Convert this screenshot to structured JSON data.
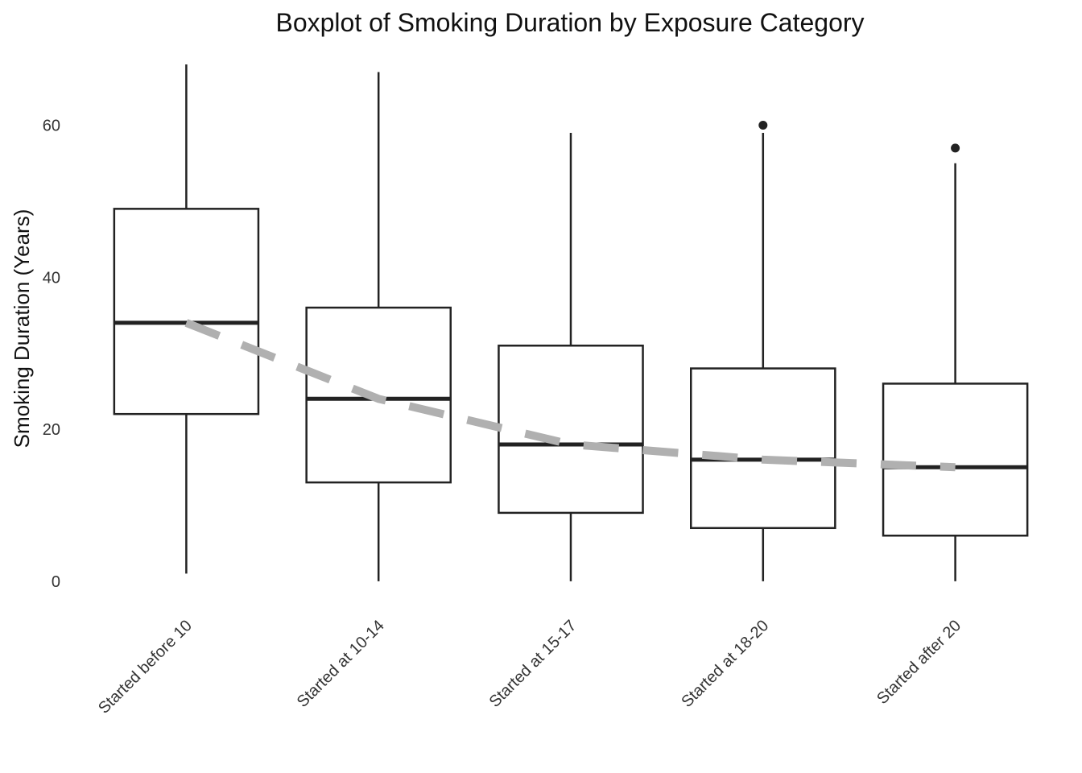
{
  "chart_data": {
    "type": "box",
    "title": "Boxplot of Smoking Duration by Exposure Category",
    "xlabel": "",
    "ylabel": "Smoking Duration (Years)",
    "ylim": [
      -1.5,
      68
    ],
    "yticks": [
      0,
      20,
      40,
      60
    ],
    "grid": false,
    "legend": "none",
    "categories": [
      "Started before 10",
      "Started at 10-14",
      "Started at 15-17",
      "Started at 18-20",
      "Started after 20"
    ],
    "boxes": [
      {
        "category": "Started before 10",
        "whisker_low": 1,
        "q1": 22,
        "median": 34,
        "q3": 49,
        "whisker_high": 68,
        "outliers": []
      },
      {
        "category": "Started at 10-14",
        "whisker_low": 0,
        "q1": 13,
        "median": 24,
        "q3": 36,
        "whisker_high": 67,
        "outliers": []
      },
      {
        "category": "Started at 15-17",
        "whisker_low": 0,
        "q1": 9,
        "median": 18,
        "q3": 31,
        "whisker_high": 59,
        "outliers": []
      },
      {
        "category": "Started at 18-20",
        "whisker_low": 0,
        "q1": 7,
        "median": 16,
        "q3": 28,
        "whisker_high": 59,
        "outliers": [
          60
        ]
      },
      {
        "category": "Started after 20",
        "whisker_low": 0,
        "q1": 6,
        "median": 15,
        "q3": 26,
        "whisker_high": 55,
        "outliers": [
          57
        ]
      }
    ],
    "trend_line": {
      "style": "dashed",
      "values": [
        34,
        24,
        18,
        16,
        15
      ]
    },
    "colors": {
      "box_stroke": "#222222",
      "outlier": "#222222",
      "trend": "#b0b0b0",
      "background": "#ffffff"
    }
  }
}
